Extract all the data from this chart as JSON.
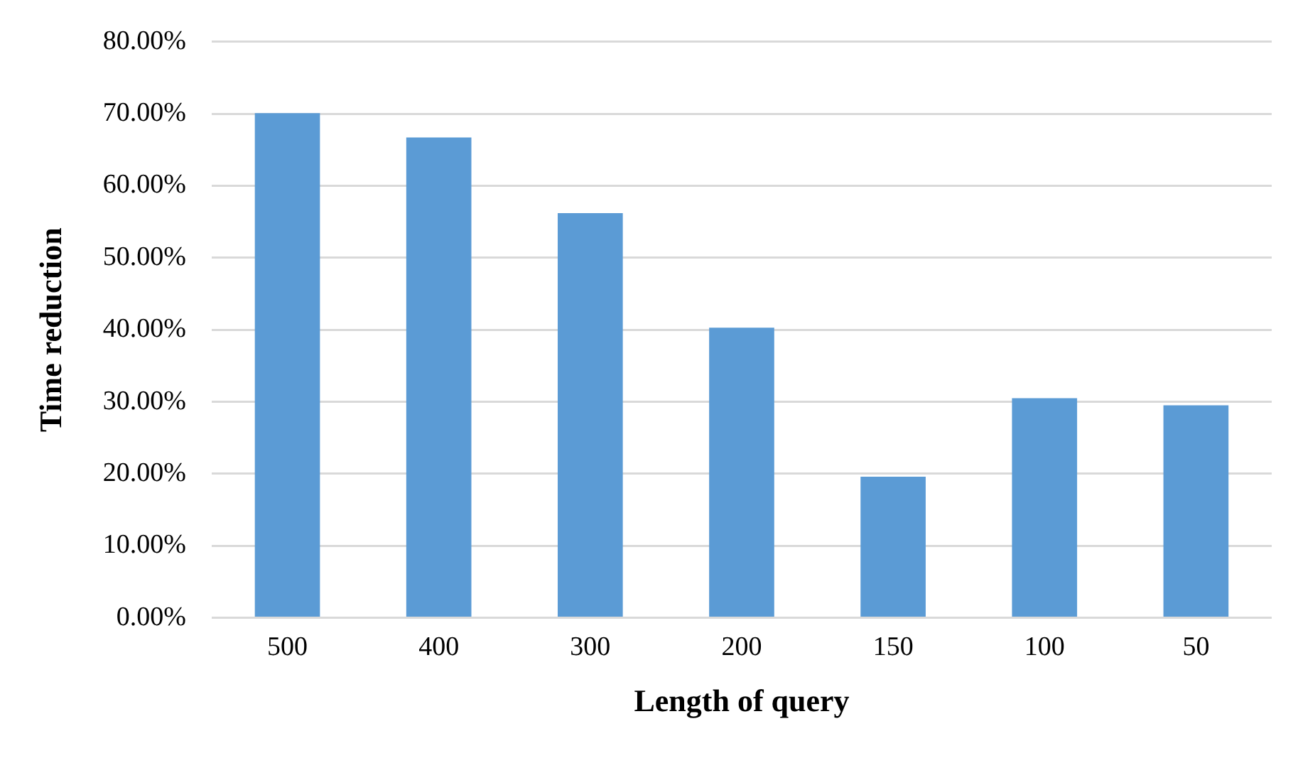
{
  "chart_data": {
    "type": "bar",
    "xlabel": "Length of query",
    "ylabel": "Time reduction",
    "categories": [
      "500",
      "400",
      "300",
      "200",
      "150",
      "100",
      "50"
    ],
    "values": [
      70.1,
      66.7,
      56.2,
      40.3,
      19.6,
      30.5,
      29.5
    ],
    "color": "#5b9bd5",
    "ylim": [
      0,
      80
    ],
    "yticks": [
      {
        "value": 0,
        "label": "0.00%"
      },
      {
        "value": 10,
        "label": "10.00%"
      },
      {
        "value": 20,
        "label": "20.00%"
      },
      {
        "value": 30,
        "label": "30.00%"
      },
      {
        "value": 40,
        "label": "40.00%"
      },
      {
        "value": 50,
        "label": "50.00%"
      },
      {
        "value": 60,
        "label": "60.00%"
      },
      {
        "value": 70,
        "label": "70.00%"
      },
      {
        "value": 80,
        "label": "80.00%"
      }
    ],
    "grid": "y",
    "legend": false
  }
}
